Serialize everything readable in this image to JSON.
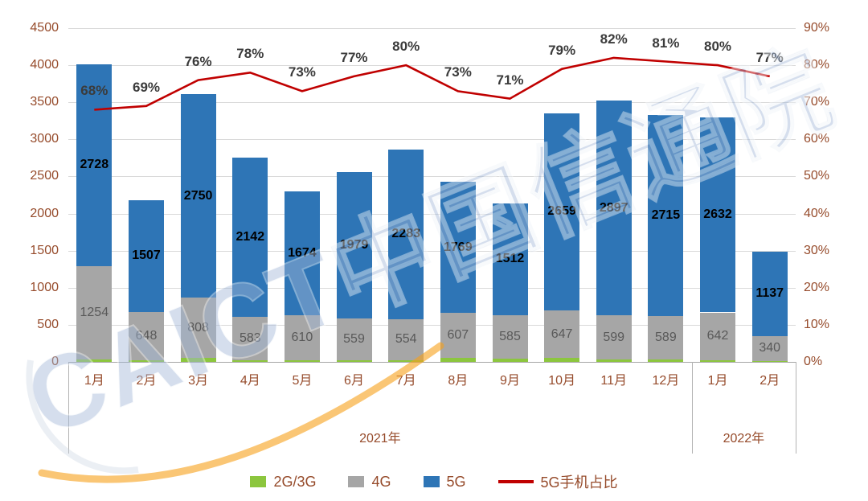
{
  "watermark": {
    "text": "CAICT中国信通院"
  },
  "colors": {
    "axis_text": "#964b2b",
    "grid": "#d9d9d9",
    "axis_line": "#a6a6a6",
    "separator": "#b3b3b3",
    "pct_label": "#3b3b3b",
    "watermark_text": "#a3b8d8",
    "watermark_swoosh": "#f7a11a",
    "bar_5g": "#2e75b6",
    "bar_4g": "#a6a6a6",
    "bar_2g3g": "#8cc63e",
    "line_red": "#c00000"
  },
  "chart_data": {
    "type": "bar",
    "title": "",
    "categories": [
      "1月",
      "2月",
      "3月",
      "4月",
      "5月",
      "6月",
      "7月",
      "8月",
      "9月",
      "10月",
      "11月",
      "12月",
      "1月",
      "2月"
    ],
    "x_groups": [
      {
        "label": "2021年",
        "start": 0,
        "end": 11
      },
      {
        "label": "2022年",
        "start": 12,
        "end": 13
      }
    ],
    "bar_series": [
      {
        "name": "2G/3G",
        "color": "#8cc63e",
        "values": [
          35,
          25,
          55,
          25,
          20,
          22,
          25,
          50,
          45,
          50,
          28,
          30,
          25,
          12
        ],
        "show_labels": false
      },
      {
        "name": "4G",
        "color": "#a6a6a6",
        "values": [
          1254,
          648,
          808,
          583,
          610,
          559,
          554,
          607,
          585,
          647,
          599,
          589,
          642,
          340
        ],
        "show_labels": true,
        "label_color": "#595959",
        "label_bold": false
      },
      {
        "name": "5G",
        "color": "#2e75b6",
        "values": [
          2728,
          1507,
          2750,
          2142,
          1674,
          1979,
          2283,
          1769,
          1512,
          2659,
          2897,
          2715,
          2632,
          1137
        ],
        "show_labels": true,
        "label_color": "#000000",
        "label_bold": true
      }
    ],
    "line_series": {
      "name": "5G手机占比",
      "color": "#c00000",
      "values": [
        68,
        69,
        76,
        78,
        73,
        77,
        80,
        73,
        71,
        79,
        82,
        81,
        80,
        77
      ],
      "label_suffix": "%"
    },
    "y_left": {
      "min": 0,
      "max": 4500,
      "ticks": [
        0,
        500,
        1000,
        1500,
        2000,
        2500,
        3000,
        3500,
        4000,
        4500
      ]
    },
    "y_right": {
      "min": 0,
      "max": 90,
      "ticks": [
        0,
        10,
        20,
        30,
        40,
        50,
        60,
        70,
        80,
        90
      ],
      "suffix": "%"
    },
    "grid": true,
    "legend_position": "bottom"
  }
}
